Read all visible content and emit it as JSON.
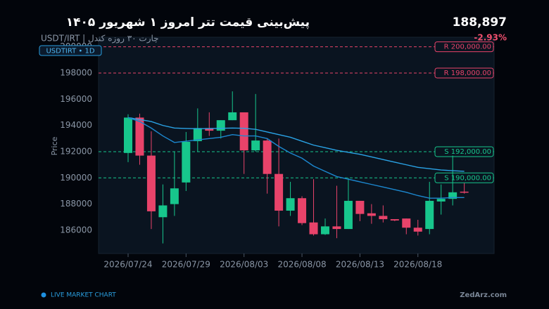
{
  "header": {
    "title": "پیش‌بینی قیمت تتر امروز ۱ شهریور ۱۴۰۵",
    "subtitle": "USDT/IRT | چارت ۳۰ روزه کندل",
    "price": "188,897",
    "change": "-2.93%"
  },
  "chart_data": {
    "type": "candlestick",
    "badge": "USDTIRT  •  1D",
    "y_label": "Price",
    "x": [
      "2026/07/24",
      "2026/07/25",
      "2026/07/26",
      "2026/07/27",
      "2026/07/28",
      "2026/07/29",
      "2026/07/30",
      "2026/07/31",
      "2026/08/01",
      "2026/08/02",
      "2026/08/03",
      "2026/08/04",
      "2026/08/05",
      "2026/08/06",
      "2026/08/07",
      "2026/08/08",
      "2026/08/09",
      "2026/08/10",
      "2026/08/11",
      "2026/08/12",
      "2026/08/13",
      "2026/08/14",
      "2026/08/15",
      "2026/08/16",
      "2026/08/17",
      "2026/08/18",
      "2026/08/19",
      "2026/08/20",
      "2026/08/21",
      "2026/08/22"
    ],
    "open": [
      191900,
      194600,
      191700,
      187000,
      188000,
      189650,
      192800,
      193800,
      193600,
      194400,
      195000,
      192100,
      192850,
      190300,
      187500,
      188450,
      186600,
      185700,
      186300,
      186100,
      188250,
      187300,
      187100,
      186850,
      186900,
      186200,
      186100,
      188200,
      188400,
      188950
    ],
    "high": [
      194850,
      194900,
      193550,
      189500,
      192000,
      193500,
      195300,
      195000,
      194400,
      196600,
      195000,
      196400,
      193000,
      193000,
      189700,
      188600,
      189900,
      186900,
      189400,
      190000,
      188250,
      188000,
      187900,
      186850,
      186900,
      186800,
      189700,
      189500,
      191700,
      189600
    ],
    "low": [
      191200,
      191000,
      186100,
      185000,
      187100,
      189000,
      192000,
      193200,
      193000,
      194400,
      190300,
      192000,
      188800,
      186300,
      187100,
      186400,
      185600,
      185650,
      185400,
      186100,
      186700,
      186500,
      186600,
      186700,
      185700,
      185600,
      185700,
      187200,
      187900,
      188800
    ],
    "close": [
      194600,
      191700,
      187450,
      187900,
      189200,
      192750,
      193800,
      193600,
      194400,
      195000,
      192100,
      192850,
      190300,
      187500,
      188450,
      186550,
      185700,
      186300,
      186100,
      188250,
      187250,
      187100,
      186850,
      186750,
      186200,
      185900,
      188250,
      188400,
      188900,
      188900
    ],
    "up_color": "#17c68c",
    "down_color": "#e8436a",
    "lines": [
      {
        "color": "#2aa3e6",
        "values": [
          194600,
          194450,
          194300,
          194000,
          193800,
          193770,
          193750,
          193760,
          193780,
          193800,
          193780,
          193700,
          193500,
          193300,
          193100,
          192800,
          192500,
          192300,
          192100,
          191950,
          191800,
          191600,
          191400,
          191200,
          191000,
          190800,
          190700,
          190600,
          190550,
          190500
        ]
      },
      {
        "color": "#1c88d0",
        "values": [
          194600,
          194300,
          193800,
          193200,
          192700,
          192800,
          192900,
          193000,
          193100,
          193300,
          193200,
          193200,
          193000,
          192400,
          191900,
          191500,
          190900,
          190500,
          190100,
          189900,
          189700,
          189500,
          189300,
          189100,
          188900,
          188650,
          188450,
          188450,
          188500,
          188500
        ]
      }
    ],
    "levels": [
      {
        "value": 200000,
        "label": "R  200,000.00",
        "color": "#e8436a"
      },
      {
        "value": 198000,
        "label": "R  198,000.00",
        "color": "#e8436a"
      },
      {
        "value": 192000,
        "label": "S  192,000.00",
        "color": "#17c68c"
      },
      {
        "value": 190000,
        "label": "S  190,000.00",
        "color": "#17c68c"
      }
    ],
    "ylim": [
      184230,
      200730
    ],
    "yticks": [
      186000,
      188000,
      190000,
      192000,
      194000,
      196000,
      198000,
      200000
    ],
    "xticks": [
      "2026/07/24",
      "2026/07/29",
      "2026/08/03",
      "2026/08/08",
      "2026/08/13",
      "2026/08/18"
    ]
  },
  "footer": {
    "live": "LIVE MARKET CHART",
    "brand": "ZedArz.com"
  }
}
